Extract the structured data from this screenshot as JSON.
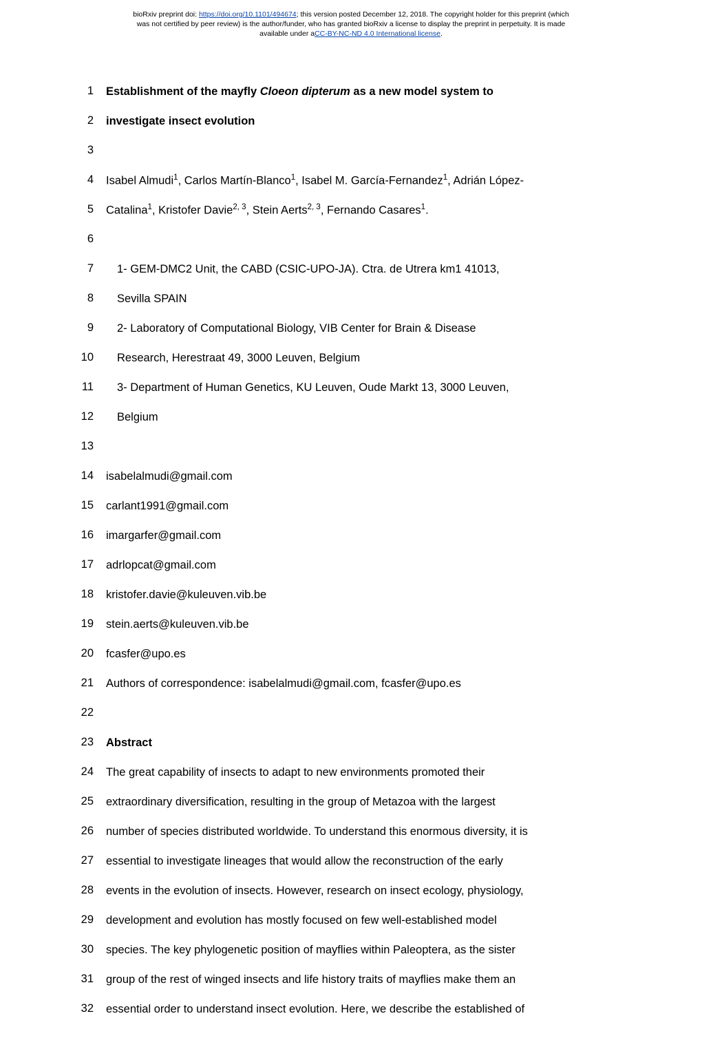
{
  "header": {
    "line1_pre": "bioRxiv preprint doi: ",
    "doi_url": "https://doi.org/10.1101/494674",
    "line1_post": "; this version posted December 12, 2018. The copyright holder for this preprint (which",
    "line2": "was not certified by peer review) is the author/funder, who has granted bioRxiv a license to display the preprint in perpetuity. It is made",
    "line3_pre": "available under a",
    "license_text": "CC-BY-NC-ND 4.0 International license",
    "line3_post": "."
  },
  "lines": [
    {
      "n": 1,
      "cls": "bold justify",
      "html": "Establishment of the mayfly <span class='italic'>Cloeon dipterum</span> as a new model system to"
    },
    {
      "n": 2,
      "cls": "bold",
      "text": "investigate insect evolution"
    },
    {
      "n": 3,
      "cls": "",
      "text": ""
    },
    {
      "n": 4,
      "cls": "justify",
      "html": "Isabel Almudi<sup>1</sup>, Carlos Martín-Blanco<sup>1</sup>, Isabel M. García-Fernandez<sup>1</sup>, Adrián López-"
    },
    {
      "n": 5,
      "cls": "",
      "html": "Catalina<sup>1</sup>, Kristofer Davie<sup>2, 3</sup>, Stein Aerts<sup>2, 3</sup>, Fernando Casares<sup>1</sup>."
    },
    {
      "n": 6,
      "cls": "",
      "text": ""
    },
    {
      "n": 7,
      "cls": "indent justify",
      "text": "1- GEM-DMC2 Unit, the CABD (CSIC-UPO-JA). Ctra. de Utrera km1 41013,"
    },
    {
      "n": 8,
      "cls": "indent",
      "text": "   Sevilla SPAIN"
    },
    {
      "n": 9,
      "cls": "indent",
      "text": "2- Laboratory of Computational Biology, VIB Center for Brain & Disease"
    },
    {
      "n": 10,
      "cls": "indent",
      "text": "   Research, Herestraat 49, 3000 Leuven, Belgium"
    },
    {
      "n": 11,
      "cls": "indent",
      "text": "3- Department of Human Genetics, KU Leuven, Oude Markt 13, 3000 Leuven,"
    },
    {
      "n": 12,
      "cls": "indent",
      "text": "   Belgium"
    },
    {
      "n": 13,
      "cls": "",
      "text": ""
    },
    {
      "n": 14,
      "cls": "",
      "text": "isabelalmudi@gmail.com"
    },
    {
      "n": 15,
      "cls": "",
      "text": "carlant1991@gmail.com"
    },
    {
      "n": 16,
      "cls": "",
      "text": "imargarfer@gmail.com"
    },
    {
      "n": 17,
      "cls": "",
      "text": "adrlopcat@gmail.com"
    },
    {
      "n": 18,
      "cls": "",
      "text": "kristofer.davie@kuleuven.vib.be"
    },
    {
      "n": 19,
      "cls": "",
      "text": "stein.aerts@kuleuven.vib.be"
    },
    {
      "n": 20,
      "cls": "",
      "text": "fcasfer@upo.es"
    },
    {
      "n": 21,
      "cls": "",
      "text": "Authors of correspondence: isabelalmudi@gmail.com, fcasfer@upo.es"
    },
    {
      "n": 22,
      "cls": "",
      "text": ""
    },
    {
      "n": 23,
      "cls": "bold",
      "text": "Abstract"
    },
    {
      "n": 24,
      "cls": "justify",
      "text": "The great capability of insects to adapt to new environments promoted their"
    },
    {
      "n": 25,
      "cls": "justify",
      "text": "extraordinary diversification, resulting in the group of Metazoa with the largest"
    },
    {
      "n": 26,
      "cls": "justify",
      "text": "number of species distributed worldwide. To understand this enormous diversity, it is"
    },
    {
      "n": 27,
      "cls": "justify",
      "text": "essential to investigate lineages that would allow the reconstruction of the early"
    },
    {
      "n": 28,
      "cls": "justify",
      "text": "events in the evolution of insects. However, research on insect ecology, physiology,"
    },
    {
      "n": 29,
      "cls": "justify",
      "text": "development and evolution has mostly focused on few well-established model"
    },
    {
      "n": 30,
      "cls": "justify",
      "text": "species. The key phylogenetic position of mayflies within Paleoptera, as the sister"
    },
    {
      "n": 31,
      "cls": "justify",
      "text": "group of the rest of winged insects and life history traits of mayflies make them an"
    },
    {
      "n": 32,
      "cls": "justify",
      "text": "essential order to understand insect evolution. Here, we describe the established of"
    }
  ]
}
